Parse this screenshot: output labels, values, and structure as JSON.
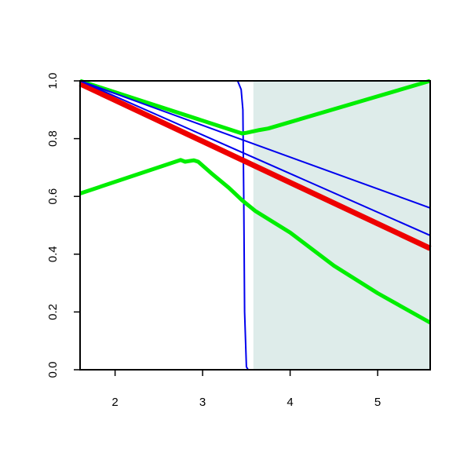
{
  "chart_data": {
    "type": "line",
    "xlim": [
      1.6,
      5.6
    ],
    "ylim": [
      0,
      1
    ],
    "xticks": [
      2,
      3,
      4,
      5
    ],
    "yticks": [
      {
        "value": 0,
        "label": "0.0"
      },
      {
        "value": 0.2,
        "label": "0.2"
      },
      {
        "value": 0.4,
        "label": "0.4"
      },
      {
        "value": 0.6,
        "label": "0.6"
      },
      {
        "value": 0.8,
        "label": "0.8"
      },
      {
        "value": 1,
        "label": "1.0"
      }
    ],
    "highlight": {
      "xlim": [
        3.58,
        5.6
      ],
      "color": "#deecea"
    },
    "series": [
      {
        "color": "#0000ee",
        "linewidth": 2,
        "x": [
          1.6,
          3.4,
          3.44,
          3.46,
          3.47,
          3.48,
          3.5,
          3.52,
          5.6
        ],
        "values": [
          1,
          1,
          0.97,
          0.9,
          0.6,
          0.2,
          0.01,
          0,
          0
        ]
      },
      {
        "color": "#00ee00",
        "linewidth": 5,
        "x": [
          1.6,
          3.45,
          3.5,
          3.65,
          3.75,
          5.6
        ],
        "values": [
          1,
          0.818,
          0.82,
          0.83,
          0.835,
          1
        ]
      },
      {
        "color": "#00ee00",
        "linewidth": 5,
        "x": [
          1.6,
          2.75,
          2.8,
          2.9,
          2.95,
          3.1,
          3.3,
          3.45,
          3.6,
          4.0,
          4.5,
          5.0,
          5.6
        ],
        "values": [
          0.61,
          0.726,
          0.72,
          0.725,
          0.72,
          0.68,
          0.63,
          0.587,
          0.55,
          0.475,
          0.36,
          0.265,
          0.163
        ]
      },
      {
        "color": "#ee0000",
        "linewidth": 7,
        "x": [
          1.6,
          5.6
        ],
        "values": [
          0.99,
          0.42
        ]
      },
      {
        "color": "#0000ee",
        "linewidth": 2,
        "x": [
          1.6,
          5.6
        ],
        "values": [
          1,
          0.56
        ]
      },
      {
        "color": "#0000ee",
        "linewidth": 2,
        "x": [
          1.6,
          5.6
        ],
        "values": [
          1,
          0.465
        ]
      }
    ]
  }
}
